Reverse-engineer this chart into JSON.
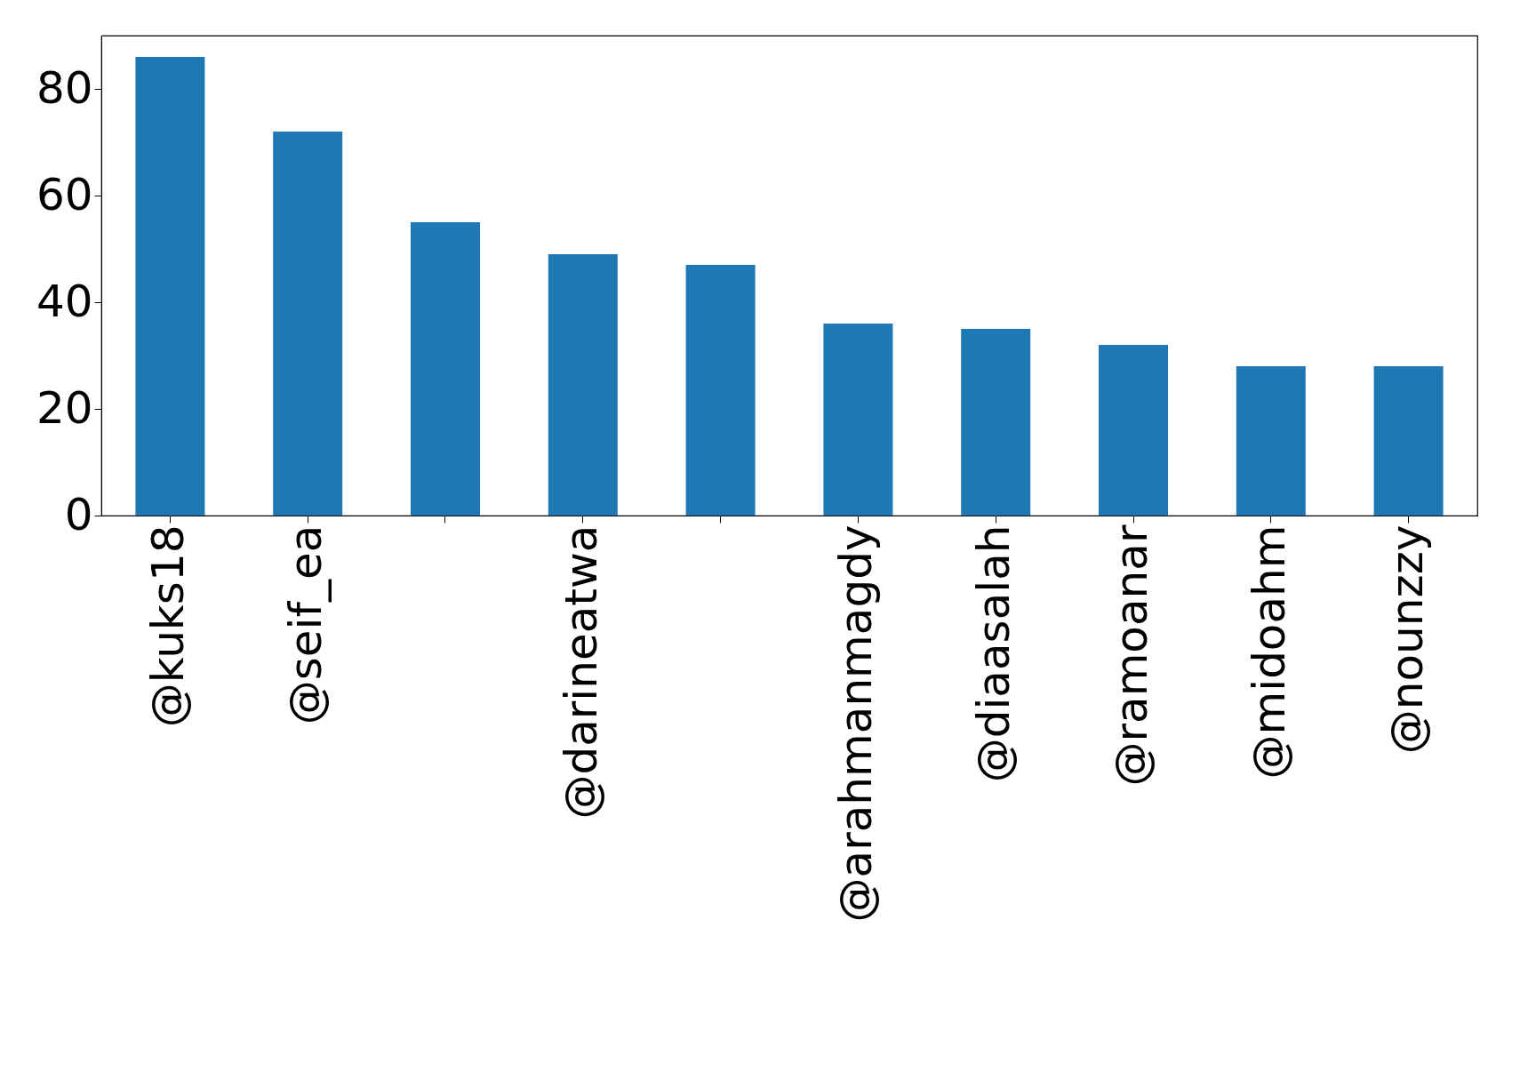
{
  "chart_data": {
    "type": "bar",
    "categories": [
      "@kuks18",
      "@seif_ea",
      null,
      "@darineatwa",
      null,
      "@arahmanmagdy",
      "@diaasalah",
      "@ramoanar",
      "@midoahm",
      "@nounzzy"
    ],
    "values": [
      86,
      72,
      55,
      49,
      47,
      36,
      35,
      32,
      28,
      28
    ],
    "color": "#1f77b4",
    "ylim": [
      0,
      90
    ],
    "yticks": [
      0,
      20,
      40,
      60,
      80
    ],
    "grid": false
  }
}
